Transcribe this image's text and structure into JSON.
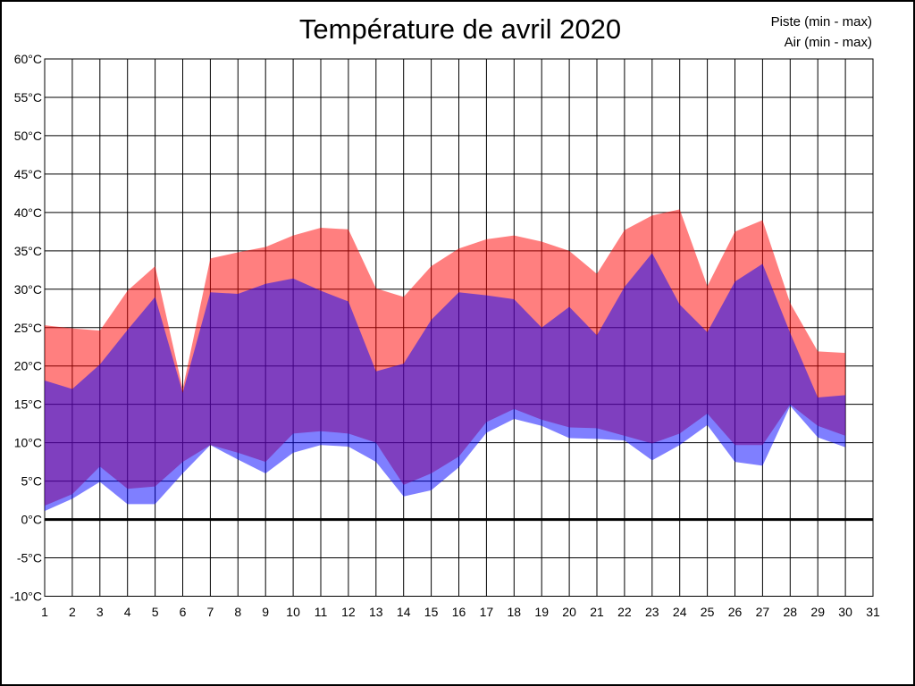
{
  "page": {
    "title": "Température de avril 2020"
  },
  "legend": {
    "items": [
      {
        "label": "Piste (min - max)",
        "color": "#ff0000"
      },
      {
        "label": "Air (min - max)",
        "color": "#0000ff"
      }
    ]
  },
  "chart_data": {
    "type": "area",
    "title": "Température de avril 2020",
    "xlabel": "",
    "ylabel": "",
    "ylim": [
      -10,
      60
    ],
    "xlim": [
      1,
      31
    ],
    "grid": true,
    "grid_step_y": 5,
    "zero_line": 0,
    "legend_position": "top-right",
    "x_tick_labels": [
      "1",
      "2",
      "3",
      "4",
      "5",
      "6",
      "7",
      "8",
      "9",
      "10",
      "11",
      "12",
      "13",
      "14",
      "15",
      "16",
      "17",
      "18",
      "19",
      "20",
      "21",
      "22",
      "23",
      "24",
      "25",
      "26",
      "27",
      "28",
      "29",
      "30",
      "31"
    ],
    "y_tick_values": [
      60,
      55,
      50,
      45,
      40,
      35,
      30,
      25,
      20,
      15,
      10,
      5,
      0,
      -5,
      -10
    ],
    "y_tick_labels": [
      "60°C",
      "55°C",
      "50°C",
      "45°C",
      "40°C",
      "35°C",
      "30°C",
      "25°C",
      "20°C",
      "15°C",
      "10°C",
      "5°C",
      "0°C",
      "-5°C",
      "-10°C"
    ],
    "days": [
      1,
      2,
      3,
      4,
      5,
      6,
      7,
      8,
      9,
      10,
      11,
      12,
      13,
      14,
      15,
      16,
      17,
      18,
      19,
      20,
      21,
      22,
      23,
      24,
      25,
      26,
      27,
      28,
      29,
      30
    ],
    "series": [
      {
        "name": "Piste (min - max)",
        "role": "band",
        "color": "rgba(255,0,0,0.5)",
        "max": [
          25.3,
          24.9,
          24.6,
          29.8,
          33,
          17,
          34,
          34.8,
          35.5,
          37,
          38,
          37.8,
          30.1,
          29,
          33,
          35.3,
          36.5,
          37,
          36.2,
          35,
          32,
          37.7,
          39.6,
          40.4,
          30.4,
          37.5,
          39,
          28.2,
          21.9,
          21.7
        ],
        "min": [
          1.8,
          3.3,
          6.9,
          4,
          4.3,
          7.5,
          9.7,
          8.7,
          7.5,
          11.2,
          11.5,
          11.2,
          10,
          4.5,
          6,
          8.2,
          12.7,
          14.4,
          13,
          12,
          11.9,
          10.9,
          9.9,
          11.2,
          13.8,
          9.7,
          9.7,
          15,
          12.2,
          10.9
        ]
      },
      {
        "name": "Air (min - max)",
        "role": "band",
        "color": "rgba(0,0,255,0.5)",
        "max": [
          18.1,
          17,
          20.2,
          24.7,
          29,
          16.5,
          29.6,
          29.4,
          30.7,
          31.4,
          29.8,
          28.4,
          19.3,
          20.3,
          26,
          29.6,
          29.2,
          28.7,
          25,
          27.7,
          24,
          30.3,
          34.7,
          28,
          24.4,
          31,
          33.3,
          24.3,
          15.9,
          16.2
        ],
        "min": [
          1.1,
          2.7,
          4.9,
          2,
          2,
          6,
          9.7,
          7.8,
          6,
          8.7,
          9.7,
          9.5,
          7.5,
          3,
          3.8,
          6.8,
          11.3,
          13.1,
          12.2,
          10.6,
          10.5,
          10.3,
          7.7,
          9.7,
          12.3,
          7.5,
          7,
          14.8,
          10.7,
          9.4
        ]
      }
    ]
  }
}
